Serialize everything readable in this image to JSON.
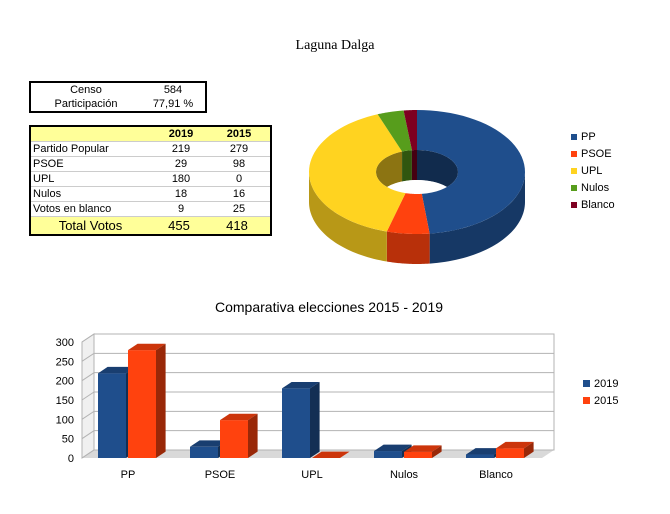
{
  "page_title": "Laguna Dalga",
  "summary": {
    "censo_label": "Censo",
    "censo_value": "584",
    "participacion_label": "Participación",
    "participacion_value": "77,91 %"
  },
  "table": {
    "headers": [
      "",
      "2019",
      "2015"
    ],
    "rows": [
      {
        "label": "Partido Popular",
        "v2019": "219",
        "v2015": "279"
      },
      {
        "label": "PSOE",
        "v2019": "29",
        "v2015": "98"
      },
      {
        "label": "UPL",
        "v2019": "180",
        "v2015": "0"
      },
      {
        "label": "Nulos",
        "v2019": "18",
        "v2015": "16"
      },
      {
        "label": "Votos en blanco",
        "v2019": "9",
        "v2015": "25"
      }
    ],
    "total": {
      "label": "Total Votos",
      "v2019": "455",
      "v2015": "418"
    }
  },
  "chart_data": [
    {
      "type": "pie",
      "title": "",
      "labels": [
        "PP",
        "PSOE",
        "UPL",
        "Nulos",
        "Blanco"
      ],
      "values": [
        219,
        29,
        180,
        18,
        9
      ],
      "colors": [
        "#1f4e8c",
        "#ff420e",
        "#ffd320",
        "#579d1c",
        "#7e0021"
      ],
      "legend": "right"
    },
    {
      "type": "bar",
      "title": "Comparativa elecciones 2015 - 2019",
      "categories": [
        "PP",
        "PSOE",
        "UPL",
        "Nulos",
        "Blanco"
      ],
      "series": [
        {
          "name": "2019",
          "values": [
            219,
            29,
            180,
            18,
            9
          ],
          "color": "#1f4e8c"
        },
        {
          "name": "2015",
          "values": [
            279,
            98,
            0,
            16,
            25
          ],
          "color": "#ff420e"
        }
      ],
      "ylim": [
        0,
        300
      ],
      "yticks": [
        0,
        50,
        100,
        150,
        200,
        250,
        300
      ],
      "legend": "right"
    }
  ]
}
